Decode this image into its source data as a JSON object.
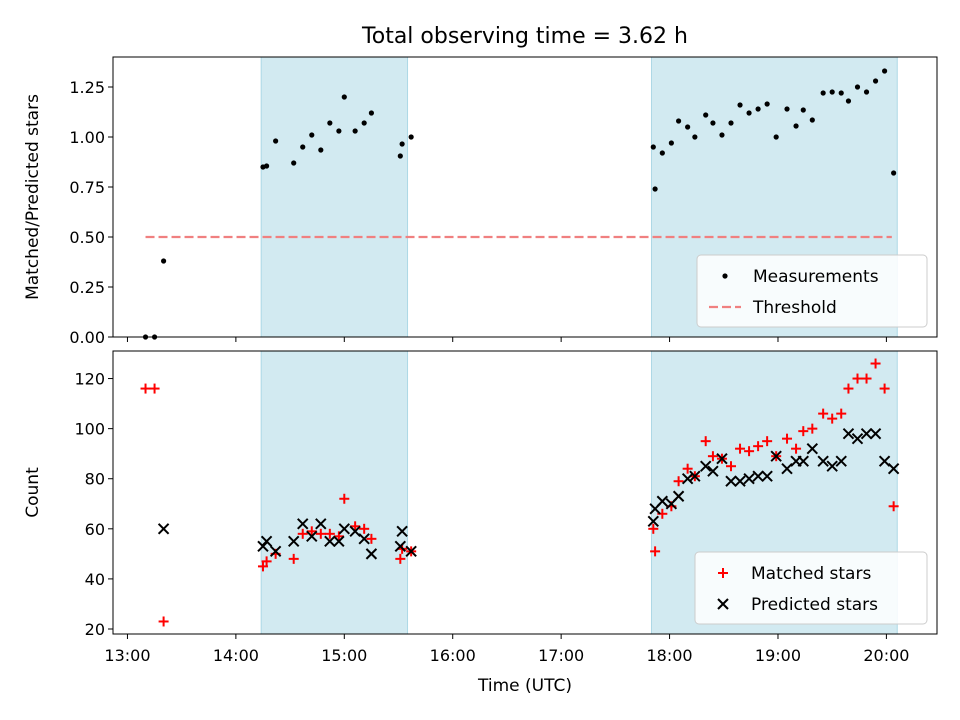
{
  "figure": {
    "title": "Total observing time = 3.62 h"
  },
  "chart_data": [
    {
      "type": "scatter",
      "panel": "top",
      "ylabel": "Matched/Predicted stars",
      "xlabel": "",
      "xlim": [
        "12:52",
        "20:28"
      ],
      "ylim": [
        0,
        1.4
      ],
      "yticks": [
        0.0,
        0.25,
        0.5,
        0.75,
        1.0,
        1.25
      ],
      "ytick_labels": [
        "0.00",
        "0.25",
        "0.50",
        "0.75",
        "1.00",
        "1.25"
      ],
      "xticks": [
        "13:00",
        "14:00",
        "15:00",
        "16:00",
        "17:00",
        "18:00",
        "19:00",
        "20:00"
      ],
      "shaded_intervals": [
        [
          "14:14",
          "15:35"
        ],
        [
          "17:50",
          "20:06"
        ]
      ],
      "shade_color": "#add8e6",
      "threshold": {
        "name": "Threshold",
        "value": 0.5,
        "x_range": [
          "13:10",
          "20:03"
        ],
        "color": "#f08080"
      },
      "legend": {
        "placement": "lower-right"
      },
      "series": [
        {
          "name": "Measurements",
          "marker": "dot",
          "color": "#000000",
          "points": [
            [
              "13:10",
              0.0
            ],
            [
              "13:15",
              0.0
            ],
            [
              "13:20",
              0.38
            ],
            [
              "14:15",
              0.85
            ],
            [
              "14:17",
              0.855
            ],
            [
              "14:22",
              0.98
            ],
            [
              "14:32",
              0.87
            ],
            [
              "14:37",
              0.95
            ],
            [
              "14:42",
              1.01
            ],
            [
              "14:47",
              0.935
            ],
            [
              "14:52",
              1.07
            ],
            [
              "14:57",
              1.03
            ],
            [
              "15:00",
              1.2
            ],
            [
              "15:06",
              1.03
            ],
            [
              "15:11",
              1.07
            ],
            [
              "15:15",
              1.12
            ],
            [
              "15:31",
              0.905
            ],
            [
              "15:32",
              0.965
            ],
            [
              "15:37",
              1.0
            ],
            [
              "17:51",
              0.95
            ],
            [
              "17:52",
              0.74
            ],
            [
              "17:56",
              0.92
            ],
            [
              "18:01",
              0.97
            ],
            [
              "18:05",
              1.08
            ],
            [
              "18:10",
              1.05
            ],
            [
              "18:14",
              1.0
            ],
            [
              "18:20",
              1.11
            ],
            [
              "18:24",
              1.07
            ],
            [
              "18:29",
              1.01
            ],
            [
              "18:34",
              1.07
            ],
            [
              "18:39",
              1.16
            ],
            [
              "18:44",
              1.12
            ],
            [
              "18:49",
              1.14
            ],
            [
              "18:54",
              1.165
            ],
            [
              "18:59",
              1.0
            ],
            [
              "19:05",
              1.14
            ],
            [
              "19:10",
              1.055
            ],
            [
              "19:14",
              1.135
            ],
            [
              "19:19",
              1.085
            ],
            [
              "19:25",
              1.22
            ],
            [
              "19:30",
              1.225
            ],
            [
              "19:35",
              1.22
            ],
            [
              "19:39",
              1.18
            ],
            [
              "19:44",
              1.25
            ],
            [
              "19:49",
              1.225
            ],
            [
              "19:54",
              1.28
            ],
            [
              "19:59",
              1.33
            ],
            [
              "20:04",
              0.82
            ]
          ]
        }
      ]
    },
    {
      "type": "scatter",
      "panel": "bottom",
      "ylabel": "Count",
      "xlabel": "Time (UTC)",
      "xlim": [
        "12:52",
        "20:28"
      ],
      "ylim": [
        18,
        131
      ],
      "yticks": [
        20,
        40,
        60,
        80,
        100,
        120
      ],
      "ytick_labels": [
        "20",
        "40",
        "60",
        "80",
        "100",
        "120"
      ],
      "xticks": [
        "13:00",
        "14:00",
        "15:00",
        "16:00",
        "17:00",
        "18:00",
        "19:00",
        "20:00"
      ],
      "xtick_labels": [
        "13:00",
        "14:00",
        "15:00",
        "16:00",
        "17:00",
        "18:00",
        "19:00",
        "20:00"
      ],
      "shaded_intervals": [
        [
          "14:14",
          "15:35"
        ],
        [
          "17:50",
          "20:06"
        ]
      ],
      "shade_color": "#add8e6",
      "legend": {
        "placement": "lower-right"
      },
      "series": [
        {
          "name": "Matched stars",
          "marker": "plus",
          "color": "#ff0000",
          "points": [
            [
              "13:10",
              116
            ],
            [
              "13:15",
              116
            ],
            [
              "13:20",
              23
            ],
            [
              "14:15",
              45
            ],
            [
              "14:17",
              47
            ],
            [
              "14:22",
              50
            ],
            [
              "14:32",
              48
            ],
            [
              "14:37",
              58
            ],
            [
              "14:42",
              59
            ],
            [
              "14:47",
              58
            ],
            [
              "14:52",
              58
            ],
            [
              "14:57",
              57
            ],
            [
              "15:00",
              72
            ],
            [
              "15:06",
              61
            ],
            [
              "15:11",
              60
            ],
            [
              "15:15",
              56
            ],
            [
              "15:31",
              48
            ],
            [
              "15:32",
              52
            ],
            [
              "15:37",
              51
            ],
            [
              "17:51",
              60
            ],
            [
              "17:52",
              51
            ],
            [
              "17:56",
              66
            ],
            [
              "18:01",
              69
            ],
            [
              "18:05",
              79
            ],
            [
              "18:10",
              84
            ],
            [
              "18:14",
              81
            ],
            [
              "18:20",
              95
            ],
            [
              "18:24",
              89
            ],
            [
              "18:29",
              88
            ],
            [
              "18:34",
              85
            ],
            [
              "18:39",
              92
            ],
            [
              "18:44",
              91
            ],
            [
              "18:49",
              93
            ],
            [
              "18:54",
              95
            ],
            [
              "18:59",
              89
            ],
            [
              "19:05",
              96
            ],
            [
              "19:10",
              92
            ],
            [
              "19:14",
              99
            ],
            [
              "19:19",
              100
            ],
            [
              "19:25",
              106
            ],
            [
              "19:30",
              104
            ],
            [
              "19:35",
              106
            ],
            [
              "19:39",
              116
            ],
            [
              "19:44",
              120
            ],
            [
              "19:49",
              120
            ],
            [
              "19:54",
              126
            ],
            [
              "19:59",
              116
            ],
            [
              "20:04",
              69
            ]
          ]
        },
        {
          "name": "Predicted stars",
          "marker": "x",
          "color": "#000000",
          "points": [
            [
              "13:20",
              60
            ],
            [
              "14:15",
              53
            ],
            [
              "14:17",
              55
            ],
            [
              "14:22",
              51
            ],
            [
              "14:32",
              55
            ],
            [
              "14:37",
              62
            ],
            [
              "14:42",
              57
            ],
            [
              "14:47",
              62
            ],
            [
              "14:52",
              55
            ],
            [
              "14:57",
              55
            ],
            [
              "15:00",
              60
            ],
            [
              "15:06",
              59
            ],
            [
              "15:11",
              56
            ],
            [
              "15:15",
              50
            ],
            [
              "15:31",
              53
            ],
            [
              "15:32",
              59
            ],
            [
              "15:37",
              51
            ],
            [
              "17:51",
              63
            ],
            [
              "17:52",
              68
            ],
            [
              "17:56",
              71
            ],
            [
              "18:01",
              70
            ],
            [
              "18:05",
              73
            ],
            [
              "18:10",
              80
            ],
            [
              "18:14",
              81
            ],
            [
              "18:20",
              85
            ],
            [
              "18:24",
              83
            ],
            [
              "18:29",
              88
            ],
            [
              "18:34",
              79
            ],
            [
              "18:39",
              79
            ],
            [
              "18:44",
              80
            ],
            [
              "18:49",
              81
            ],
            [
              "18:54",
              81
            ],
            [
              "18:59",
              89
            ],
            [
              "19:05",
              84
            ],
            [
              "19:10",
              87
            ],
            [
              "19:14",
              87
            ],
            [
              "19:19",
              92
            ],
            [
              "19:25",
              87
            ],
            [
              "19:30",
              85
            ],
            [
              "19:35",
              87
            ],
            [
              "19:39",
              98
            ],
            [
              "19:44",
              96
            ],
            [
              "19:49",
              98
            ],
            [
              "19:54",
              98
            ],
            [
              "19:59",
              87
            ],
            [
              "20:04",
              84
            ]
          ]
        }
      ]
    }
  ]
}
